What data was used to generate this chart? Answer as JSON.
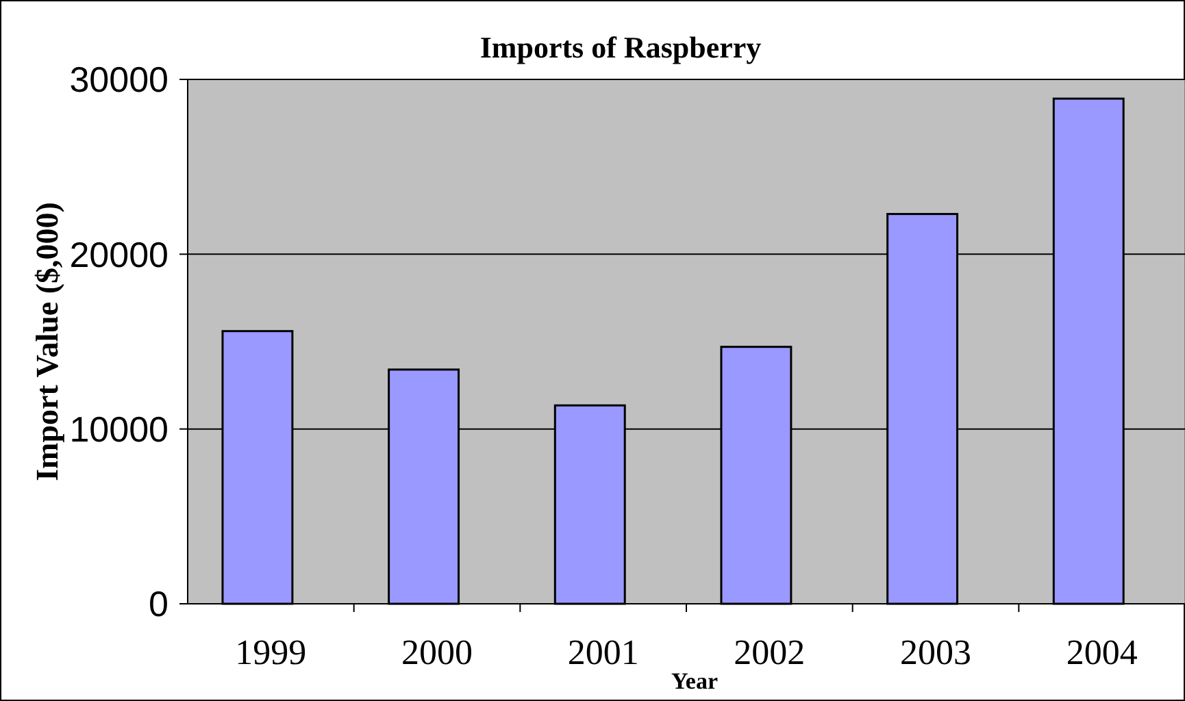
{
  "chart_data": {
    "type": "bar",
    "title": "Imports of Raspberry",
    "xlabel": "Year",
    "ylabel": "Import Value ($,000)",
    "categories": [
      "1999",
      "2000",
      "2001",
      "2002",
      "2003",
      "2004"
    ],
    "values": [
      15600,
      13400,
      11350,
      14700,
      22300,
      28900
    ],
    "color": "#9999ff",
    "ylim": [
      0,
      30000
    ],
    "yticks": [
      0,
      10000,
      20000,
      30000
    ],
    "grid": "y"
  }
}
